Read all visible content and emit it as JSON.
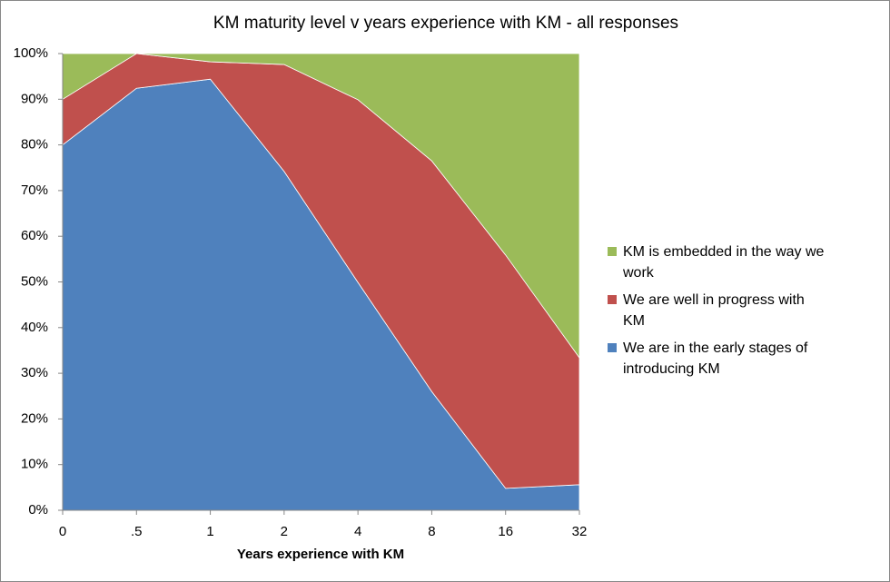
{
  "chart_data": {
    "type": "stacked-area",
    "title": "KM maturity level v years experience with KM - all responses",
    "x_label": "Years experience with KM",
    "categories": [
      "0",
      ".5",
      "1",
      "2",
      "4",
      "8",
      "16",
      "32"
    ],
    "series": [
      {
        "name": "We are in the early stages of introducing KM",
        "color": "#4f81bd",
        "values": [
          80,
          92.4,
          94.4,
          74.2,
          49.9,
          26,
          4.8,
          5.6
        ]
      },
      {
        "name": "We are well in progress with KM",
        "color": "#c0504d",
        "values": [
          10,
          7.6,
          3.8,
          23.4,
          40,
          50.5,
          51.1,
          27.8
        ]
      },
      {
        "name": "KM is embedded in the way we work",
        "color": "#9bbb59",
        "values": [
          10,
          0,
          1.8,
          2.4,
          10.1,
          23.5,
          44.1,
          66.6
        ]
      }
    ],
    "ylim": [
      0,
      100
    ],
    "yticks": [
      {
        "value": 0,
        "label": "0%"
      },
      {
        "value": 10,
        "label": "10%"
      },
      {
        "value": 20,
        "label": "20%"
      },
      {
        "value": 30,
        "label": "30%"
      },
      {
        "value": 40,
        "label": "40%"
      },
      {
        "value": 50,
        "label": "50%"
      },
      {
        "value": 60,
        "label": "60%"
      },
      {
        "value": 70,
        "label": "70%"
      },
      {
        "value": 80,
        "label": "80%"
      },
      {
        "value": 90,
        "label": "90%"
      },
      {
        "value": 100,
        "label": "100%"
      }
    ],
    "legend": "right"
  }
}
